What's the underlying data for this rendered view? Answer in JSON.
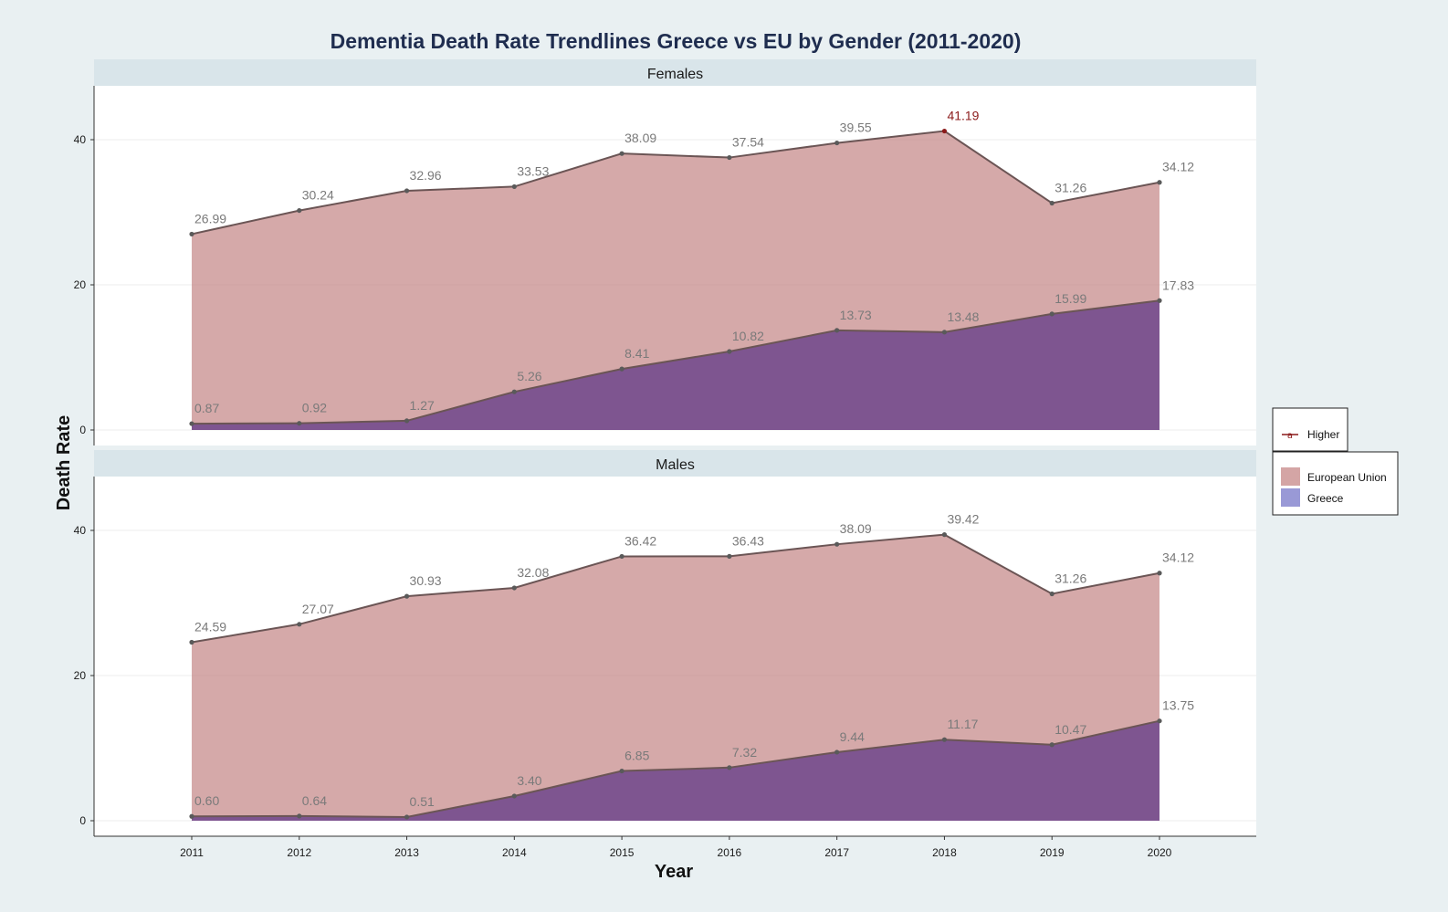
{
  "chart_data": {
    "type": "area",
    "title": "Dementia Death Rate Trendlines Greece vs EU by Gender (2011-2020)",
    "xlabel": "Year",
    "ylabel": "Death Rate",
    "x": [
      "2011",
      "2012",
      "2013",
      "2014",
      "2015",
      "2016",
      "2017",
      "2018",
      "2019",
      "2020"
    ],
    "ylim": [
      0,
      45
    ],
    "yticks": [
      "0",
      "20",
      "40"
    ],
    "legend": {
      "placement": "right",
      "highlight": {
        "label": "Higher",
        "color": "#8b1a1a"
      },
      "entries": [
        {
          "label": "European Union",
          "color": "#d4a5a5"
        },
        {
          "label": "Greece",
          "color": "#9999d6"
        }
      ]
    },
    "panels": [
      {
        "name": "Females",
        "series": [
          {
            "name": "European Union",
            "color": "#d4a5a5",
            "values": [
              26.99,
              30.24,
              32.96,
              33.53,
              38.09,
              37.54,
              39.55,
              41.19,
              31.26,
              34.12
            ],
            "labels": [
              "26.99",
              "30.24",
              "32.96",
              "33.53",
              "38.09",
              "37.54",
              "39.55",
              "41.19",
              "31.26",
              "34.12"
            ],
            "highlight_index": 7
          },
          {
            "name": "Greece",
            "color": "#9999d6",
            "values": [
              0.87,
              0.92,
              1.27,
              5.26,
              8.41,
              10.82,
              13.73,
              13.48,
              15.99,
              17.83
            ],
            "labels": [
              "0.87",
              "0.92",
              "1.27",
              "5.26",
              "8.41",
              "10.82",
              "13.73",
              "13.48",
              "15.99",
              "17.83"
            ],
            "highlight_index": -1
          }
        ]
      },
      {
        "name": "Males",
        "series": [
          {
            "name": "European Union",
            "color": "#d4a5a5",
            "values": [
              24.59,
              27.07,
              30.93,
              32.08,
              36.42,
              36.43,
              38.09,
              39.42,
              31.26,
              34.12
            ],
            "labels": [
              "24.59",
              "27.07",
              "30.93",
              "32.08",
              "36.42",
              "36.43",
              "38.09",
              "39.42",
              "31.26",
              "34.12"
            ],
            "highlight_index": -1
          },
          {
            "name": "Greece",
            "color": "#9999d6",
            "values": [
              0.6,
              0.64,
              0.51,
              3.4,
              6.85,
              7.32,
              9.44,
              11.17,
              10.47,
              13.75
            ],
            "labels": [
              "0.60",
              "0.64",
              "0.51",
              "3.40",
              "6.85",
              "7.32",
              "9.44",
              "11.17",
              "10.47",
              "13.75"
            ],
            "highlight_index": -1
          }
        ]
      }
    ],
    "grid": true
  }
}
